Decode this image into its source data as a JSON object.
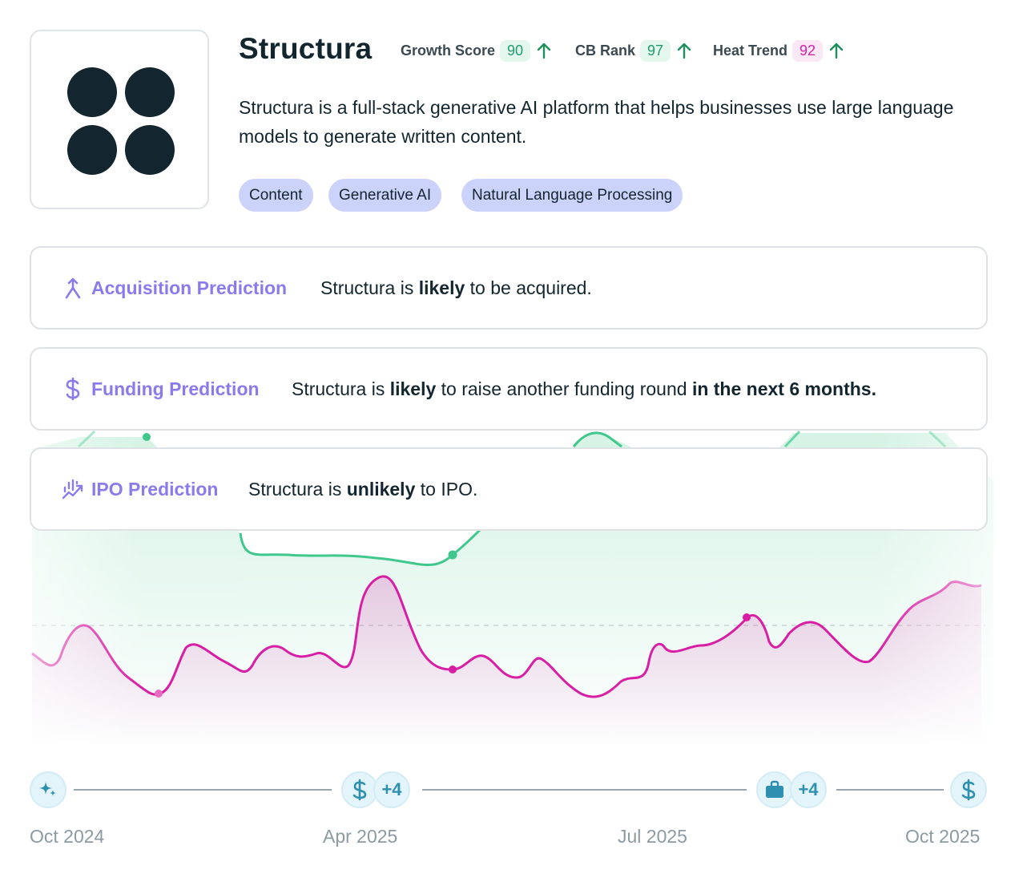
{
  "company": {
    "name": "Structura",
    "description": "Structura is a full-stack generative AI platform that helps businesses use large language models to generate written content.",
    "logo_icon": "four-dots-logo"
  },
  "metrics": [
    {
      "label": "Growth Score",
      "value": "90",
      "trend": "up",
      "color": "#1f9c6b",
      "bg": "#e4f7ee"
    },
    {
      "label": "CB Rank",
      "value": "97",
      "trend": "up",
      "color": "#1f9c6b",
      "bg": "#e4f7ee"
    },
    {
      "label": "Heat Trend",
      "value": "92",
      "trend": "up",
      "color": "#d424a6",
      "bg": "#fbe8f6"
    }
  ],
  "tags": [
    "Content",
    "Generative AI",
    "Natural Language Processing"
  ],
  "predictions": {
    "acquisition": {
      "label": "Acquisition Prediction",
      "text_pre": "Structura is ",
      "text_bold": "likely",
      "text_post": " to be acquired.",
      "icon": "merge-arrow-icon"
    },
    "funding": {
      "label": "Funding Prediction",
      "text_pre": "Structura is ",
      "text_bold": "likely",
      "text_mid": " to raise another funding round ",
      "text_bold2": "in the next 6 months.",
      "icon": "dollar-icon"
    },
    "ipo": {
      "label": "IPO Prediction",
      "text_pre": "Structura is ",
      "text_bold": "unlikely",
      "text_post": " to IPO.",
      "icon": "chart-growth-icon"
    }
  },
  "timeline": {
    "events": [
      {
        "icon": "sparkle-icon"
      },
      {
        "icon": "dollar-icon",
        "extra": "+4"
      },
      {
        "icon": "briefcase-icon",
        "extra": "+4"
      },
      {
        "icon": "dollar-icon"
      }
    ],
    "dates": [
      "Oct 2024",
      "Apr 2025",
      "Jul 2025",
      "Oct 2025"
    ]
  },
  "colors": {
    "accent_purple": "#8a7bec",
    "growth_green": "#3fc78c",
    "heat_magenta": "#d81ea4",
    "timeline_blue": "#2e8fb0"
  }
}
